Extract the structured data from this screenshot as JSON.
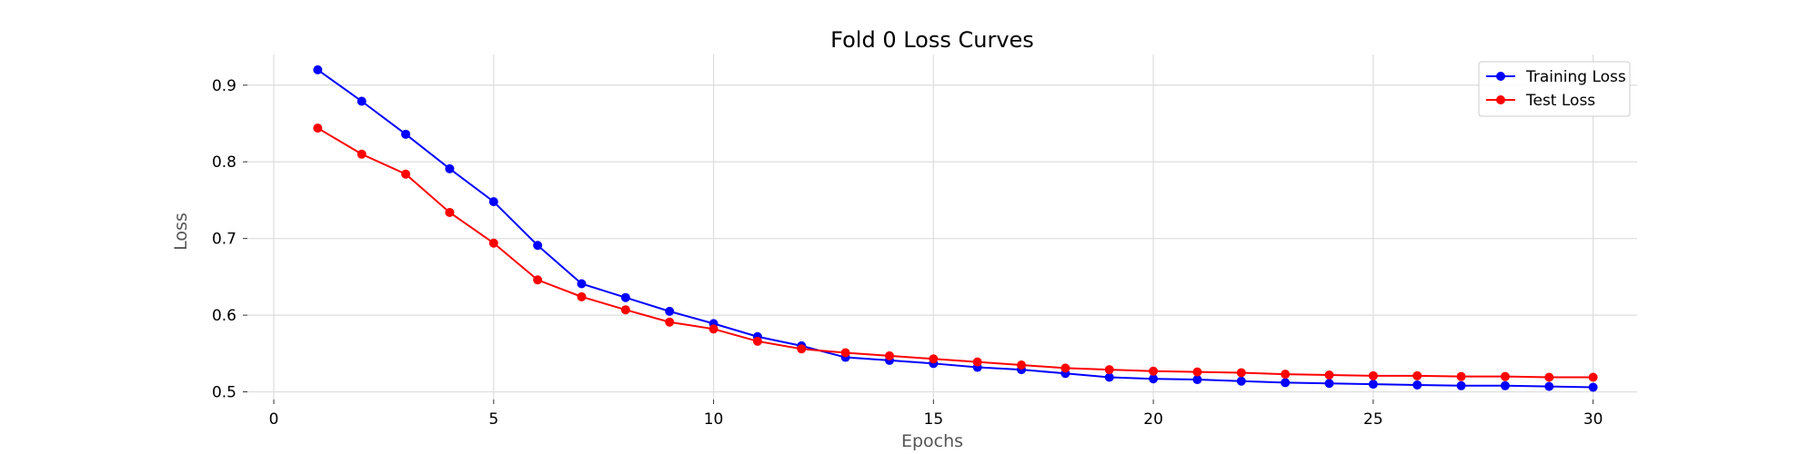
{
  "chart_data": {
    "type": "line",
    "title": "Fold 0 Loss Curves",
    "xlabel": "Epochs",
    "ylabel": "Loss",
    "xlim": [
      -0.6,
      31.0
    ],
    "ylim": [
      0.49,
      0.94
    ],
    "xticks": [
      0,
      5,
      10,
      15,
      20,
      25,
      30
    ],
    "yticks": [
      0.5,
      0.6,
      0.7,
      0.8,
      0.9
    ],
    "ytick_labels": [
      "0.5",
      "0.6",
      "0.7",
      "0.8",
      "0.9"
    ],
    "grid": true,
    "legend_position": "top-right",
    "x": [
      1,
      2,
      3,
      4,
      5,
      6,
      7,
      8,
      9,
      10,
      11,
      12,
      13,
      14,
      15,
      16,
      17,
      18,
      19,
      20,
      21,
      22,
      23,
      24,
      25,
      26,
      27,
      28,
      29,
      30
    ],
    "series": [
      {
        "name": "Training Loss",
        "color": "#0000ff",
        "values": [
          0.92,
          0.879,
          0.836,
          0.791,
          0.748,
          0.691,
          0.641,
          0.623,
          0.605,
          0.589,
          0.572,
          0.56,
          0.545,
          0.541,
          0.537,
          0.532,
          0.529,
          0.524,
          0.519,
          0.517,
          0.516,
          0.514,
          0.512,
          0.511,
          0.51,
          0.509,
          0.508,
          0.508,
          0.507,
          0.506
        ]
      },
      {
        "name": "Test Loss",
        "color": "#ff0000",
        "values": [
          0.844,
          0.81,
          0.784,
          0.734,
          0.694,
          0.646,
          0.624,
          0.607,
          0.591,
          0.582,
          0.566,
          0.556,
          0.551,
          0.547,
          0.543,
          0.539,
          0.535,
          0.531,
          0.529,
          0.527,
          0.526,
          0.525,
          0.523,
          0.522,
          0.521,
          0.521,
          0.52,
          0.52,
          0.519,
          0.519
        ]
      }
    ]
  }
}
